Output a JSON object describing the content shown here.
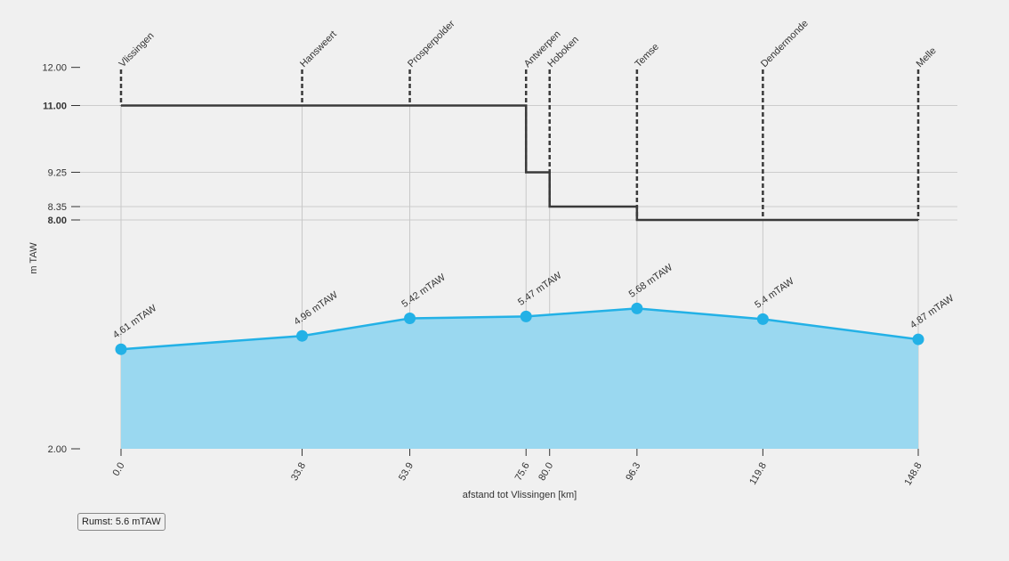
{
  "chart_data": {
    "type": "area",
    "xlabel": "afstand tot Vlissingen [km]",
    "ylabel": "m TAW",
    "ylim": [
      2.0,
      13.0
    ],
    "y_ticks": [
      2.0,
      8.0,
      8.35,
      9.25,
      11.0,
      12.0
    ],
    "y_tick_labels": [
      "2.00",
      "8.00",
      "8.35",
      "9.25",
      "11.00",
      "12.00"
    ],
    "y_bold_ticks": [
      "8.00",
      "11.00"
    ],
    "x_ticks": [
      0.0,
      33.8,
      53.9,
      75.6,
      80.0,
      96.3,
      119.8,
      148.8
    ],
    "x_tick_labels": [
      "0.0",
      "33.8",
      "53.9",
      "75.6",
      "80.0",
      "96.3",
      "119.8",
      "148.8"
    ],
    "stations": [
      {
        "name": "Vlissingen",
        "x": 0.0
      },
      {
        "name": "Hansweert",
        "x": 33.8
      },
      {
        "name": "Prosperpolder",
        "x": 53.9
      },
      {
        "name": "Antwerpen",
        "x": 75.6
      },
      {
        "name": "Hoboken",
        "x": 80.0
      },
      {
        "name": "Temse",
        "x": 96.3
      },
      {
        "name": "Dendermonde",
        "x": 119.8
      },
      {
        "name": "Melle",
        "x": 148.8
      }
    ],
    "series": [
      {
        "x": [
          0.0,
          33.8,
          53.9,
          75.6,
          80.0,
          96.3,
          119.8,
          148.8
        ],
        "values": [
          11.0,
          11.0,
          11.0,
          9.25,
          8.35,
          8.0,
          8.0,
          8.0
        ]
      },
      {
        "x": [
          0.0,
          33.8,
          53.9,
          75.6,
          96.3,
          119.8,
          148.8
        ],
        "values": [
          4.61,
          4.96,
          5.42,
          5.47,
          5.68,
          5.4,
          4.87
        ],
        "labels": [
          "4.61 mTAW",
          "4.96 mTAW",
          "5.42 mTAW",
          "5.47 mTAW",
          "5.68 mTAW",
          "5.4 mTAW",
          "4.87 mTAW"
        ]
      }
    ],
    "grid": true,
    "colors": {
      "water": "#23b1e6",
      "water_fill": "#9ad8f0",
      "dike": "#3a3a3a"
    }
  },
  "tooltip": {
    "text": "Rumst: 5.6 mTAW"
  }
}
